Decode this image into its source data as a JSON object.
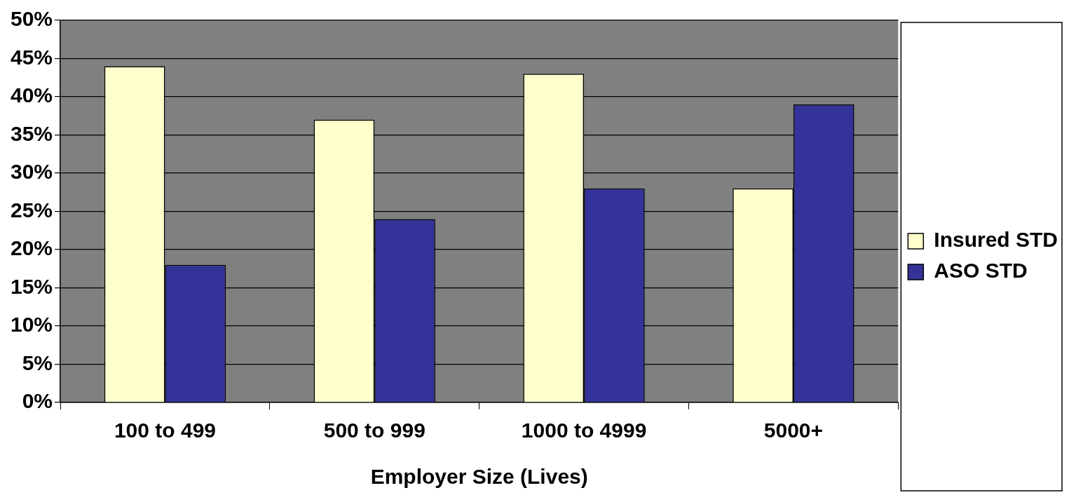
{
  "chart_data": {
    "type": "bar",
    "xlabel": "Employer Size (Lives)",
    "categories": [
      "100 to 499",
      "500 to 999",
      "1000 to 4999",
      "5000+"
    ],
    "series": [
      {
        "name": "Insured STD",
        "color": "#ffffcc",
        "values": [
          44,
          37,
          43,
          28
        ]
      },
      {
        "name": "ASO STD",
        "color": "#333399",
        "values": [
          18,
          24,
          28,
          39
        ]
      }
    ],
    "ylim": [
      0,
      50
    ],
    "yticks": [
      {
        "value": 0,
        "label": "0%"
      },
      {
        "value": 5,
        "label": "5%"
      },
      {
        "value": 10,
        "label": "10%"
      },
      {
        "value": 15,
        "label": "15%"
      },
      {
        "value": 20,
        "label": "20%"
      },
      {
        "value": 25,
        "label": "25%"
      },
      {
        "value": 30,
        "label": "30%"
      },
      {
        "value": 35,
        "label": "35%"
      },
      {
        "value": 40,
        "label": "40%"
      },
      {
        "value": 45,
        "label": "45%"
      },
      {
        "value": 50,
        "label": "50%"
      }
    ],
    "grid": "y",
    "legend": "right"
  }
}
